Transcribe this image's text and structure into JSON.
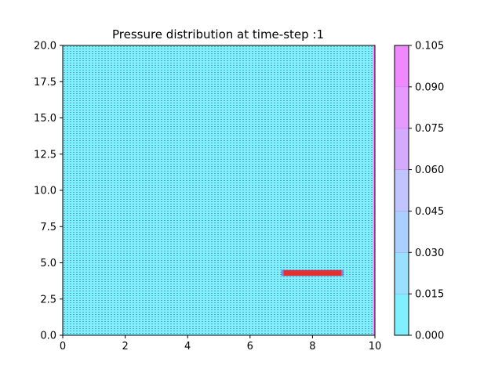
{
  "chart_data": {
    "type": "heatmap",
    "title": "Pressure distribution at time-step :1",
    "xlabel": "",
    "ylabel": "",
    "xlim": [
      0,
      10
    ],
    "ylim": [
      0,
      20
    ],
    "x_ticks": [
      0,
      2,
      4,
      6,
      8,
      10
    ],
    "x_tick_labels": [
      "0",
      "2",
      "4",
      "6",
      "8",
      "10"
    ],
    "y_ticks": [
      0,
      2.5,
      5,
      7.5,
      10,
      12.5,
      15,
      17.5,
      20
    ],
    "y_tick_labels": [
      "0.0",
      "2.5",
      "5.0",
      "7.5",
      "10.0",
      "12.5",
      "15.0",
      "17.5",
      "20.0"
    ],
    "field_value": 0.0,
    "field_color": "#80f0ff",
    "mesh_dot_color": "#1a4a5a",
    "high_value_edge": {
      "x": 10,
      "y_range": [
        0,
        20
      ],
      "color": "#ff80ff"
    },
    "source_segment": {
      "x_range": [
        7.0,
        9.0
      ],
      "y": 4.3,
      "color": "#e03030",
      "end_color": "#8040e0"
    },
    "colorbar": {
      "min": 0.0,
      "max": 0.105,
      "ticks": [
        0.0,
        0.015,
        0.03,
        0.045,
        0.06,
        0.075,
        0.09,
        0.105
      ],
      "tick_labels": [
        "0.000",
        "0.015",
        "0.030",
        "0.045",
        "0.060",
        "0.075",
        "0.090",
        "0.105"
      ],
      "level_colors": [
        "#80f0ff",
        "#99e0ff",
        "#aad0ff",
        "#c0c4ff",
        "#d4aaff",
        "#e49aff",
        "#f088ff"
      ]
    }
  }
}
